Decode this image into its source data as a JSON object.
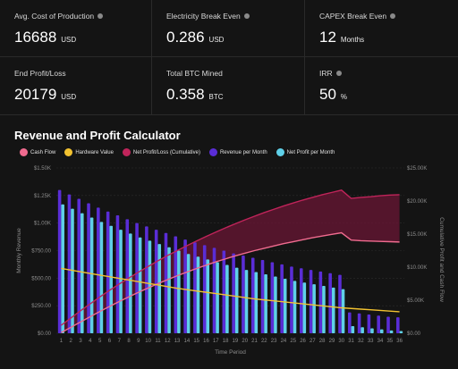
{
  "stats": [
    {
      "label": "Avg. Cost of Production",
      "value": "16688",
      "unit": "USD",
      "info_icon": true
    },
    {
      "label": "Electricity Break Even",
      "value": "0.286",
      "unit": "USD",
      "info_icon": true
    },
    {
      "label": "CAPEX Break Even",
      "value": "12",
      "unit": "Months",
      "info_icon": true
    },
    {
      "label": "End Profit/Loss",
      "value": "20179",
      "unit": "USD",
      "info_icon": false
    },
    {
      "label": "Total BTC Mined",
      "value": "0.358",
      "unit": "BTC",
      "info_icon": false
    },
    {
      "label": "IRR",
      "value": "50",
      "unit": "%",
      "info_icon": true
    }
  ],
  "calculator": {
    "title": "Revenue and Profit Calculator"
  },
  "legend": [
    {
      "label": "Cash Flow",
      "color": "#f06b8f"
    },
    {
      "label": "Hardware Value",
      "color": "#f2c230"
    },
    {
      "label": "Net Profit/Loss (Cumulative)",
      "color": "#c0245a"
    },
    {
      "label": "Revenue per Month",
      "color": "#5a2dd6"
    },
    {
      "label": "Net Profit per Month",
      "color": "#5fd0e8"
    }
  ],
  "chart_data": {
    "type": "bar",
    "xlabel": "Time Period",
    "ylabel_left": "Monthly Revenue",
    "ylabel_right": "Cumulative Profit and Cash Flow",
    "categories": [
      1,
      2,
      3,
      4,
      5,
      6,
      7,
      8,
      9,
      10,
      11,
      12,
      13,
      14,
      15,
      16,
      17,
      18,
      19,
      20,
      21,
      22,
      23,
      24,
      25,
      26,
      27,
      28,
      29,
      30,
      31,
      32,
      33,
      34,
      35,
      36
    ],
    "left_ticks": [
      "$0.00",
      "$250.00",
      "$500.00",
      "$750.00",
      "$1.00K",
      "$1.25K",
      "$1.50K"
    ],
    "left_ylim": [
      0,
      1500
    ],
    "right_ticks": [
      "$0.00",
      "$5.00K",
      "$10.00K",
      "$15.00K",
      "$20.00K",
      "$25.00K"
    ],
    "right_ylim": [
      0,
      25000
    ],
    "series": [
      {
        "name": "Revenue per Month",
        "axis": "left",
        "values": [
          1300,
          1260,
          1220,
          1180,
          1140,
          1105,
          1070,
          1035,
          1000,
          970,
          940,
          910,
          880,
          850,
          825,
          800,
          775,
          750,
          725,
          705,
          685,
          665,
          645,
          625,
          605,
          590,
          575,
          560,
          545,
          530,
          190,
          180,
          170,
          160,
          150,
          145
        ]
      },
      {
        "name": "Net Profit per Month",
        "axis": "left",
        "values": [
          1170,
          1130,
          1090,
          1050,
          1010,
          975,
          940,
          905,
          870,
          840,
          810,
          780,
          750,
          720,
          695,
          670,
          645,
          620,
          595,
          575,
          555,
          535,
          515,
          495,
          475,
          460,
          445,
          430,
          415,
          400,
          65,
          55,
          45,
          35,
          25,
          20
        ]
      },
      {
        "name": "Net Profit/Loss (Cumulative)",
        "axis": "right",
        "values": [
          1200,
          2300,
          3400,
          4450,
          5500,
          6500,
          7450,
          8350,
          9250,
          10100,
          10950,
          11750,
          12500,
          13250,
          13950,
          14650,
          15300,
          15950,
          16550,
          17150,
          17700,
          18250,
          18750,
          19250,
          19700,
          20150,
          20550,
          20950,
          21300,
          21650,
          20400,
          20550,
          20650,
          20800,
          20900,
          20950
        ]
      },
      {
        "name": "Cash Flow",
        "axis": "right",
        "values": [
          100,
          900,
          1700,
          2500,
          3300,
          4050,
          4800,
          5500,
          6200,
          6850,
          7500,
          8100,
          8700,
          9250,
          9800,
          10300,
          10800,
          11250,
          11700,
          12100,
          12500,
          12850,
          13200,
          13550,
          13850,
          14150,
          14450,
          14700,
          14950,
          15200,
          14100,
          14000,
          13950,
          13900,
          13850,
          13800
        ]
      },
      {
        "name": "Hardware Value",
        "axis": "right",
        "values": [
          9800,
          9550,
          9300,
          9050,
          8800,
          8550,
          8300,
          8050,
          7800,
          7550,
          7300,
          7050,
          6800,
          6600,
          6400,
          6200,
          6000,
          5800,
          5600,
          5400,
          5200,
          5050,
          4900,
          4750,
          4600,
          4450,
          4300,
          4150,
          4000,
          3850,
          3750,
          3650,
          3550,
          3450,
          3350,
          3250
        ]
      }
    ]
  }
}
